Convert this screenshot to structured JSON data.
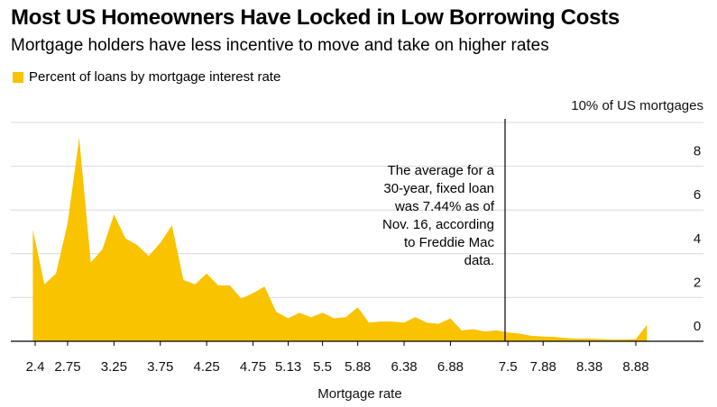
{
  "chart_data": {
    "type": "area",
    "title": "Most US Homeowners Have Locked in Low Borrowing Costs",
    "subtitle": "Mortgage holders have less incentive to move and take on higher rates",
    "legend": [
      {
        "label": "Percent of loans by mortgage interest rate",
        "color": "#f9c300"
      }
    ],
    "legend_position": "top-left",
    "xlabel": "Mortgage rate",
    "ylabel": "10% of US mortgages",
    "x_ticks": [
      {
        "value": 2.4,
        "label": "2.4"
      },
      {
        "value": 2.75,
        "label": "2.75"
      },
      {
        "value": 3.25,
        "label": "3.25"
      },
      {
        "value": 3.75,
        "label": "3.75"
      },
      {
        "value": 4.25,
        "label": "4.25"
      },
      {
        "value": 4.75,
        "label": "4.75"
      },
      {
        "value": 5.13,
        "label": "5.13"
      },
      {
        "value": 5.5,
        "label": "5.5"
      },
      {
        "value": 5.88,
        "label": "5.88"
      },
      {
        "value": 6.38,
        "label": "6.38"
      },
      {
        "value": 6.88,
        "label": "6.88"
      },
      {
        "value": 7.5,
        "label": "7.5"
      },
      {
        "value": 7.88,
        "label": "7.88"
      },
      {
        "value": 8.38,
        "label": "8.38"
      },
      {
        "value": 8.88,
        "label": "8.88"
      }
    ],
    "y_ticks": [
      0,
      2,
      4,
      6,
      8
    ],
    "y_top_label": "10% of US mortgages",
    "xlim": [
      2.35,
      9.55
    ],
    "ylim": [
      0,
      10
    ],
    "grid": true,
    "annotation": {
      "x": 7.44,
      "lines": [
        "The average for a",
        "30-year, fixed loan",
        "was 7.44% as of",
        "Nov. 16, according",
        "to Freddie Mac",
        "data."
      ]
    },
    "series": [
      {
        "name": "Percent of loans by mortgage interest rate",
        "points": [
          [
            2.375,
            0
          ],
          [
            2.375,
            5.1
          ],
          [
            2.5,
            2.6
          ],
          [
            2.625,
            3.1
          ],
          [
            2.75,
            5.4
          ],
          [
            2.875,
            9.3
          ],
          [
            3.0,
            3.6
          ],
          [
            3.125,
            4.2
          ],
          [
            3.25,
            5.8
          ],
          [
            3.375,
            4.7
          ],
          [
            3.5,
            4.4
          ],
          [
            3.625,
            3.9
          ],
          [
            3.75,
            4.5
          ],
          [
            3.875,
            5.3
          ],
          [
            4.0,
            2.8
          ],
          [
            4.125,
            2.6
          ],
          [
            4.25,
            3.1
          ],
          [
            4.375,
            2.55
          ],
          [
            4.5,
            2.55
          ],
          [
            4.625,
            1.95
          ],
          [
            4.75,
            2.2
          ],
          [
            4.875,
            2.5
          ],
          [
            5.0,
            1.35
          ],
          [
            5.13,
            1.05
          ],
          [
            5.25,
            1.3
          ],
          [
            5.375,
            1.1
          ],
          [
            5.5,
            1.3
          ],
          [
            5.625,
            1.05
          ],
          [
            5.75,
            1.1
          ],
          [
            5.88,
            1.55
          ],
          [
            6.0,
            0.85
          ],
          [
            6.125,
            0.9
          ],
          [
            6.25,
            0.9
          ],
          [
            6.38,
            0.85
          ],
          [
            6.5,
            1.1
          ],
          [
            6.625,
            0.85
          ],
          [
            6.75,
            0.8
          ],
          [
            6.88,
            1.05
          ],
          [
            7.0,
            0.5
          ],
          [
            7.125,
            0.55
          ],
          [
            7.25,
            0.45
          ],
          [
            7.375,
            0.5
          ],
          [
            7.5,
            0.4
          ],
          [
            7.625,
            0.35
          ],
          [
            7.75,
            0.25
          ],
          [
            7.88,
            0.22
          ],
          [
            8.0,
            0.2
          ],
          [
            8.125,
            0.15
          ],
          [
            8.25,
            0.12
          ],
          [
            8.38,
            0.12
          ],
          [
            8.5,
            0.1
          ],
          [
            8.625,
            0.08
          ],
          [
            8.75,
            0.08
          ],
          [
            8.88,
            0.1
          ],
          [
            9.0,
            0.75
          ],
          [
            9.0,
            0
          ]
        ]
      }
    ],
    "colors": {
      "area": "#f9c300",
      "grid": "#d9d9d9",
      "axis": "#000000"
    }
  }
}
